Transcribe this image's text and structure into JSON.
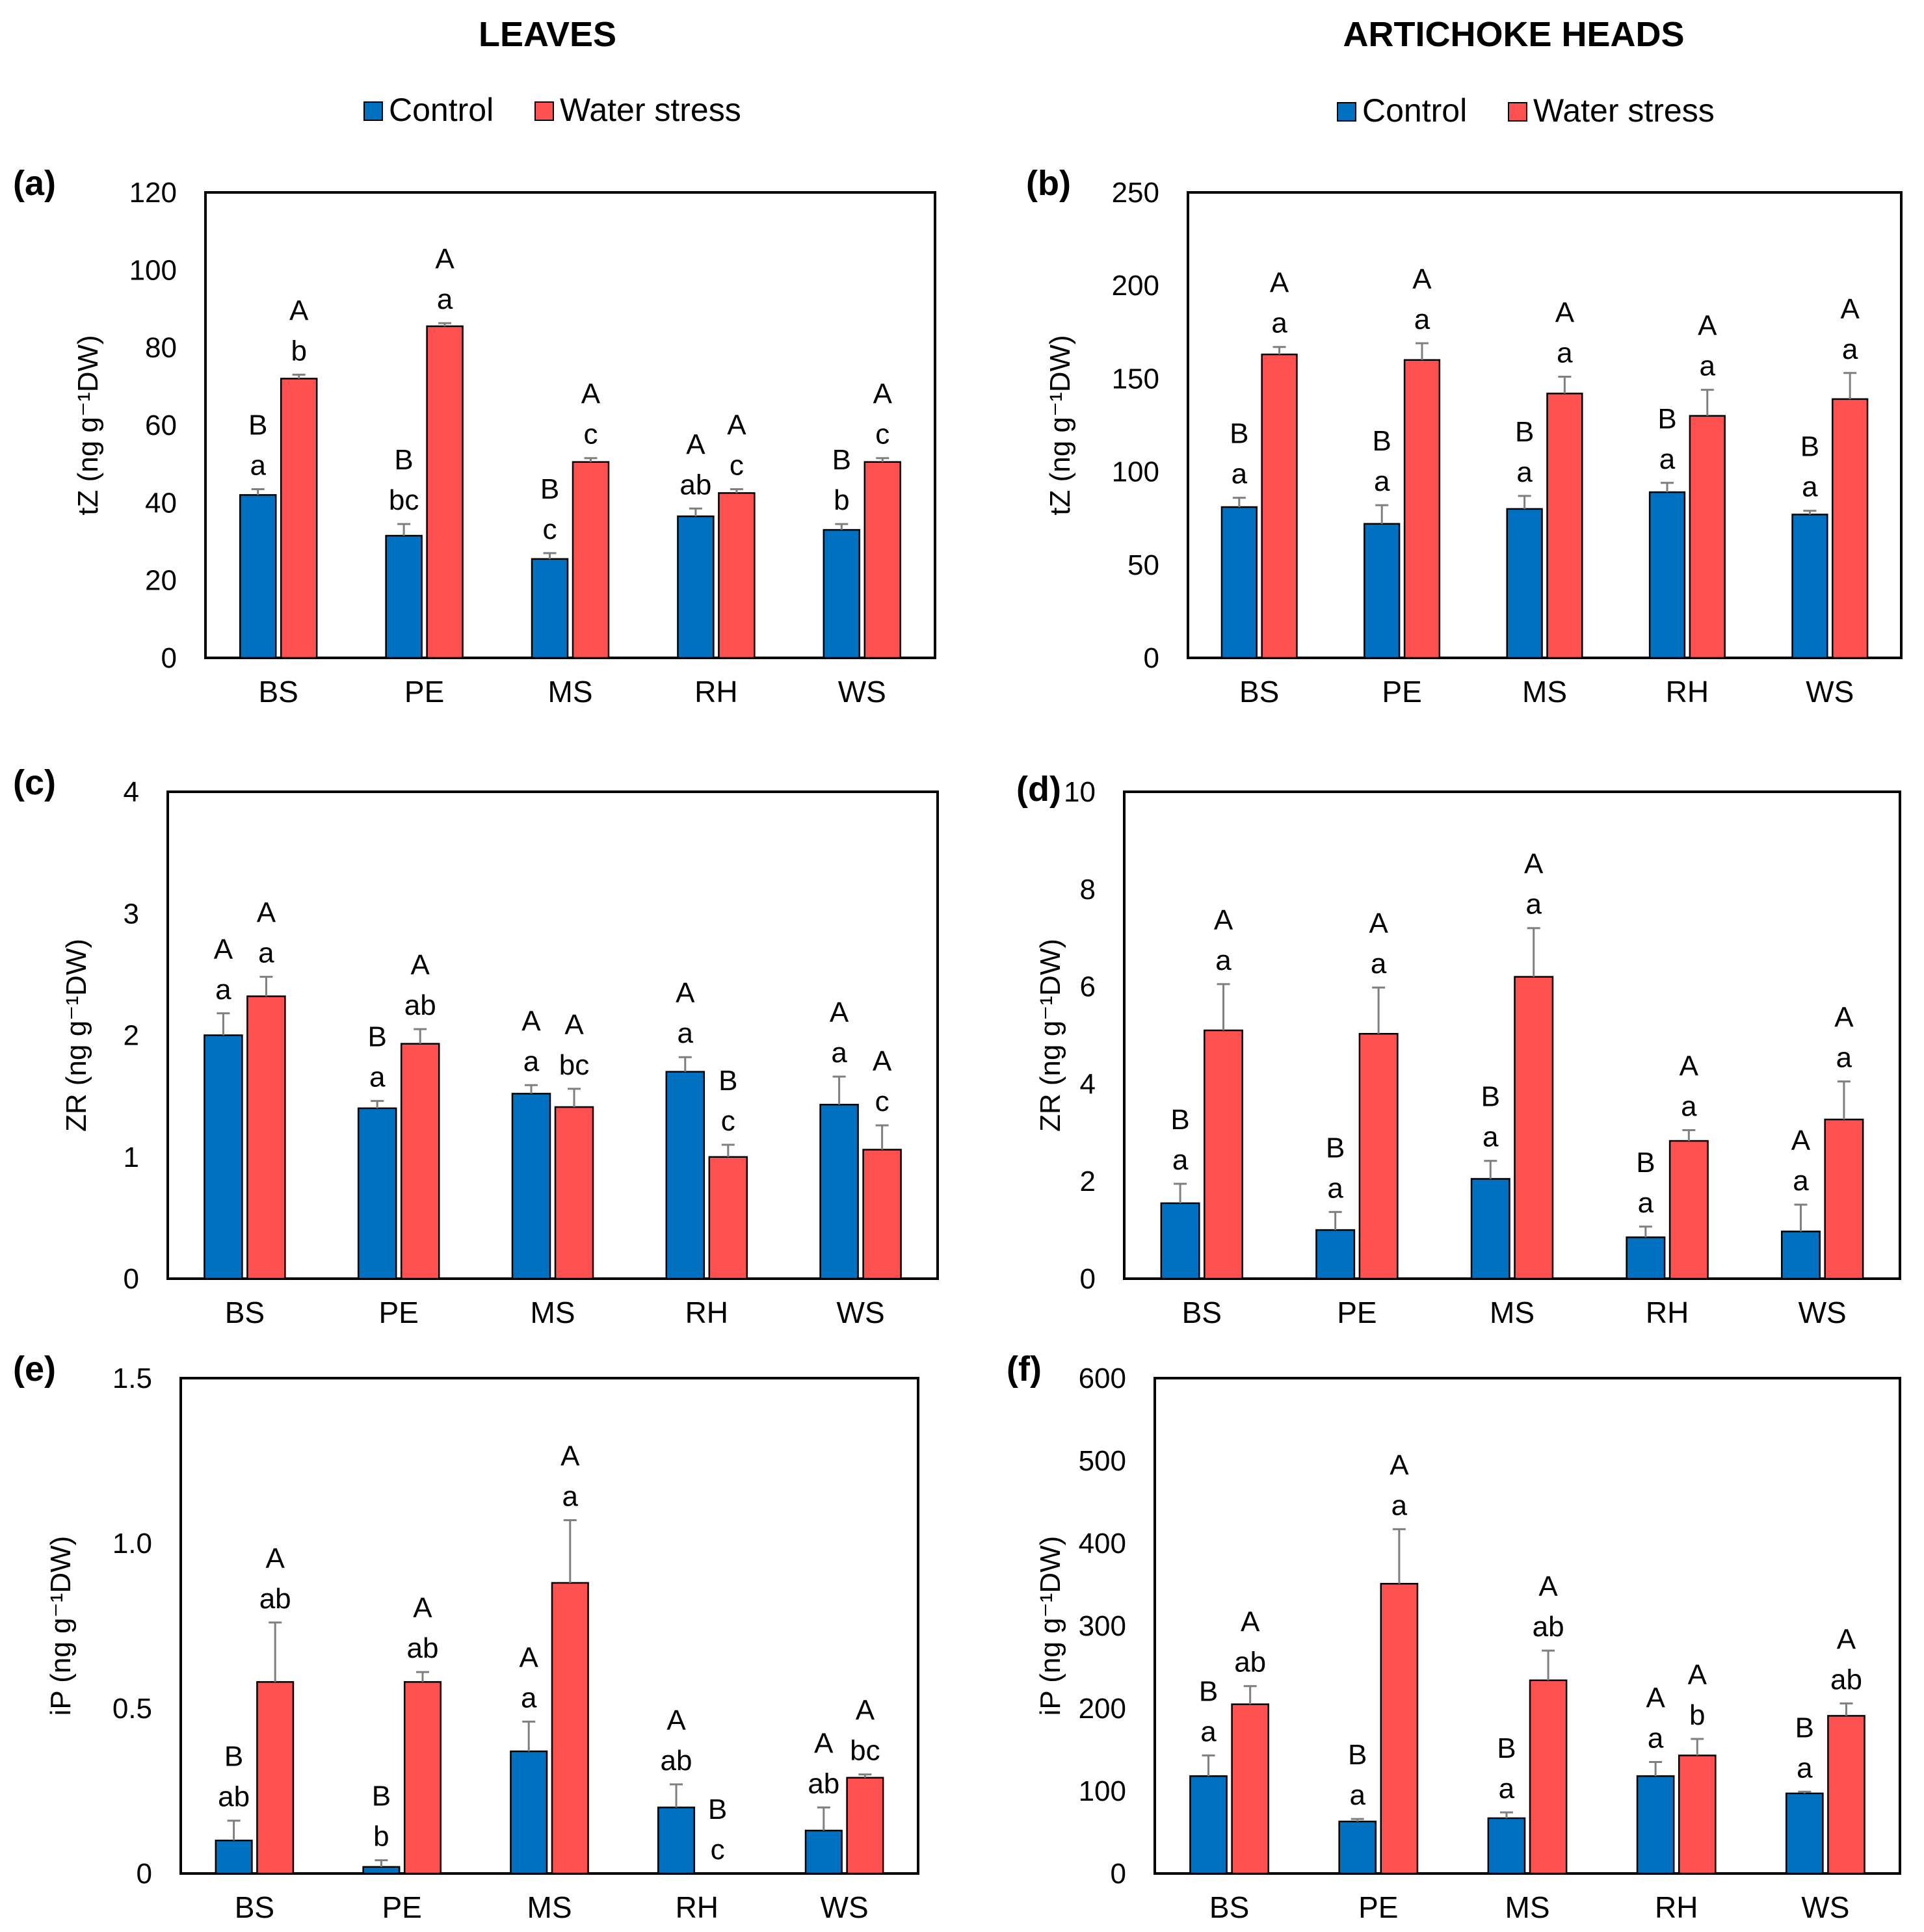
{
  "colors": {
    "control": "#0070C0",
    "water_stress": "#FF5050",
    "frame": "#000000",
    "error_bar": "#7F7F7F"
  },
  "column_titles": [
    "LEAVES",
    "ARTICHOKE HEADS"
  ],
  "legend": {
    "control": "Control",
    "water_stress": "Water stress"
  },
  "chart_data": [
    {
      "id": "a",
      "panel_label": "(a)",
      "type": "bar",
      "ylabel": "tZ (ng g⁻¹DW)",
      "ylim": [
        0,
        120
      ],
      "yticks": [
        "0",
        "20",
        "40",
        "60",
        "80",
        "100",
        "120"
      ],
      "categories": [
        "BS",
        "PE",
        "MS",
        "RH",
        "WS"
      ],
      "series": [
        {
          "name": "Control",
          "values": [
            42,
            31.5,
            25.5,
            36.5,
            33
          ],
          "errors": [
            1.5,
            3,
            1.5,
            2,
            1.5
          ],
          "letters": [
            [
              "B",
              "a"
            ],
            [
              "B",
              "bc"
            ],
            [
              "B",
              "c"
            ],
            [
              "A",
              "ab"
            ],
            [
              "B",
              "b"
            ]
          ]
        },
        {
          "name": "Water stress",
          "values": [
            72,
            85.5,
            50.5,
            42.5,
            50.5
          ],
          "errors": [
            1,
            0.8,
            1,
            1,
            1
          ],
          "letters": [
            [
              "A",
              "b"
            ],
            [
              "A",
              "a"
            ],
            [
              "A",
              "c"
            ],
            [
              "A",
              "c"
            ],
            [
              "A",
              "c"
            ]
          ]
        }
      ]
    },
    {
      "id": "b",
      "panel_label": "(b)",
      "type": "bar",
      "ylabel": "tZ (ng g⁻¹DW)",
      "ylim": [
        0,
        250
      ],
      "yticks": [
        "0",
        "50",
        "100",
        "150",
        "200",
        "250"
      ],
      "categories": [
        "BS",
        "PE",
        "MS",
        "RH",
        "WS"
      ],
      "series": [
        {
          "name": "Control",
          "values": [
            81,
            72,
            80,
            89,
            77
          ],
          "errors": [
            5,
            10,
            7,
            5,
            2
          ],
          "letters": [
            [
              "B",
              "a"
            ],
            [
              "B",
              "a"
            ],
            [
              "B",
              "a"
            ],
            [
              "B",
              "a"
            ],
            [
              "B",
              "a"
            ]
          ]
        },
        {
          "name": "Water stress",
          "values": [
            163,
            160,
            142,
            130,
            139
          ],
          "errors": [
            4,
            9,
            9,
            14,
            14
          ],
          "letters": [
            [
              "A",
              "a"
            ],
            [
              "A",
              "a"
            ],
            [
              "A",
              "a"
            ],
            [
              "A",
              "a"
            ],
            [
              "A",
              "a"
            ]
          ]
        }
      ]
    },
    {
      "id": "c",
      "panel_label": "(c)",
      "type": "bar",
      "ylabel": "ZR (ng g⁻¹DW)",
      "ylim": [
        0,
        4
      ],
      "yticks": [
        "0",
        "1",
        "2",
        "3",
        "4"
      ],
      "categories": [
        "BS",
        "PE",
        "MS",
        "RH",
        "WS"
      ],
      "series": [
        {
          "name": "Control",
          "values": [
            2.0,
            1.4,
            1.52,
            1.7,
            1.43
          ],
          "errors": [
            0.18,
            0.06,
            0.07,
            0.12,
            0.23
          ],
          "letters": [
            [
              "A",
              "a"
            ],
            [
              "B",
              "a"
            ],
            [
              "A",
              "a"
            ],
            [
              "A",
              "a"
            ],
            [
              "A",
              "a"
            ]
          ]
        },
        {
          "name": "Water stress",
          "values": [
            2.32,
            1.93,
            1.41,
            1.0,
            1.06
          ],
          "errors": [
            0.16,
            0.12,
            0.15,
            0.1,
            0.2
          ],
          "letters": [
            [
              "A",
              "a"
            ],
            [
              "A",
              "ab"
            ],
            [
              "A",
              "bc"
            ],
            [
              "B",
              "c"
            ],
            [
              "A",
              "c"
            ]
          ]
        }
      ]
    },
    {
      "id": "d",
      "panel_label": "(d)",
      "type": "bar",
      "ylabel": "ZR (ng g⁻¹DW)",
      "ylim": [
        0,
        10
      ],
      "yticks": [
        "0",
        "2",
        "4",
        "6",
        "8",
        "10"
      ],
      "categories": [
        "BS",
        "PE",
        "MS",
        "RH",
        "WS"
      ],
      "series": [
        {
          "name": "Control",
          "values": [
            1.55,
            1.0,
            2.05,
            0.85,
            0.97
          ],
          "errors": [
            0.4,
            0.37,
            0.37,
            0.22,
            0.55
          ],
          "letters": [
            [
              "B",
              "a"
            ],
            [
              "B",
              "a"
            ],
            [
              "B",
              "a"
            ],
            [
              "B",
              "a"
            ],
            [
              "A",
              "a"
            ]
          ]
        },
        {
          "name": "Water stress",
          "values": [
            5.1,
            5.03,
            6.2,
            2.83,
            3.27
          ],
          "errors": [
            0.95,
            0.95,
            1.0,
            0.22,
            0.78
          ],
          "letters": [
            [
              "A",
              "a"
            ],
            [
              "A",
              "a"
            ],
            [
              "A",
              "a"
            ],
            [
              "A",
              "a"
            ],
            [
              "A",
              "a"
            ]
          ]
        }
      ]
    },
    {
      "id": "e",
      "panel_label": "(e)",
      "type": "bar",
      "ylabel": "iP (ng g⁻¹DW)",
      "ylim": [
        0,
        1.5
      ],
      "yticks": [
        "0",
        "0.5",
        "1.0",
        "1.5"
      ],
      "categories": [
        "BS",
        "PE",
        "MS",
        "RH",
        "WS"
      ],
      "series": [
        {
          "name": "Control",
          "values": [
            0.1,
            0.02,
            0.37,
            0.2,
            0.13
          ],
          "errors": [
            0.06,
            0.02,
            0.09,
            0.07,
            0.07
          ],
          "letters": [
            [
              "B",
              "ab"
            ],
            [
              "B",
              "b"
            ],
            [
              "A",
              "a"
            ],
            [
              "A",
              "ab"
            ],
            [
              "A",
              "ab"
            ]
          ]
        },
        {
          "name": "Water stress",
          "values": [
            0.58,
            0.58,
            0.88,
            0.0,
            0.29
          ],
          "errors": [
            0.18,
            0.03,
            0.19,
            0.0,
            0.01
          ],
          "letters": [
            [
              "A",
              "ab"
            ],
            [
              "A",
              "ab"
            ],
            [
              "A",
              "a"
            ],
            [
              "B",
              "c"
            ],
            [
              "A",
              "bc"
            ]
          ]
        }
      ]
    },
    {
      "id": "f",
      "panel_label": "(f)",
      "type": "bar",
      "ylabel": "iP (ng g⁻¹DW)",
      "ylim": [
        0,
        600
      ],
      "yticks": [
        "0",
        "100",
        "200",
        "300",
        "400",
        "500",
        "600"
      ],
      "categories": [
        "BS",
        "PE",
        "MS",
        "RH",
        "WS"
      ],
      "series": [
        {
          "name": "Control",
          "values": [
            118,
            63,
            67,
            118,
            97
          ],
          "errors": [
            25,
            3,
            7,
            17,
            2
          ],
          "letters": [
            [
              "B",
              "a"
            ],
            [
              "B",
              "a"
            ],
            [
              "B",
              "a"
            ],
            [
              "A",
              "a"
            ],
            [
              "B",
              "a"
            ]
          ]
        },
        {
          "name": "Water stress",
          "values": [
            205,
            351,
            234,
            143,
            191
          ],
          "errors": [
            22,
            66,
            36,
            20,
            15
          ],
          "letters": [
            [
              "A",
              "ab"
            ],
            [
              "A",
              "a"
            ],
            [
              "A",
              "ab"
            ],
            [
              "A",
              "b"
            ],
            [
              "A",
              "ab"
            ]
          ]
        }
      ]
    }
  ]
}
